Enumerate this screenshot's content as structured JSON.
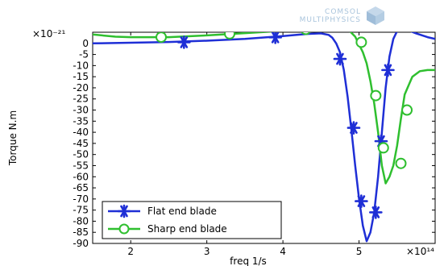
{
  "branding": {
    "logo_line1": "COMSOL",
    "logo_line2": "MULTIPHYSICS",
    "logo_color": "#a9c4dc"
  },
  "chart_data": {
    "type": "line",
    "xlabel": "freq 1/s",
    "ylabel": "Torque N.m",
    "x_exponent_label": "×10¹⁴",
    "y_exponent_label": "×10⁻²¹",
    "x_scale": 100000000000000.0,
    "y_scale": 1e-21,
    "xlim": [
      1.5,
      6.0
    ],
    "ylim": [
      -90,
      5
    ],
    "xticks": [
      2,
      3,
      4,
      5
    ],
    "yticks": [
      0,
      -5,
      -10,
      -15,
      -20,
      -25,
      -30,
      -35,
      -40,
      -45,
      -50,
      -55,
      -60,
      -65,
      -70,
      -75,
      -80,
      -85,
      -90
    ],
    "grid": false,
    "legend_position": "bottom-left",
    "series": [
      {
        "name": "Flat end blade",
        "color": "#1f2fd6",
        "marker": "star",
        "x": [
          1.5,
          2.0,
          2.5,
          3.0,
          3.5,
          4.0,
          4.3,
          4.5,
          4.6,
          4.65,
          4.7,
          4.75,
          4.8,
          4.85,
          4.9,
          4.95,
          5.0,
          5.05,
          5.1,
          5.15,
          5.2,
          5.25,
          5.3,
          5.35,
          5.4,
          5.45,
          5.5,
          5.6,
          5.75,
          5.9,
          6.0
        ],
        "y": [
          0,
          0.3,
          0.6,
          1.2,
          2.0,
          3.3,
          4.2,
          4.5,
          3.8,
          2.5,
          0,
          -4,
          -12,
          -24,
          -39,
          -55,
          -70,
          -82,
          -89,
          -85,
          -76,
          -60,
          -40,
          -20,
          -6,
          2,
          5.5,
          6.5,
          4.5,
          2.8,
          2.0
        ],
        "markers_x": [
          2.7,
          3.9,
          4.75,
          4.93,
          5.03,
          5.22,
          5.29,
          5.38
        ],
        "markers_y": [
          0.5,
          2.7,
          -7,
          -38,
          -71,
          -76,
          -44,
          -12
        ]
      },
      {
        "name": "Sharp end blade",
        "color": "#2fbf2f",
        "marker": "circle",
        "x": [
          1.5,
          1.8,
          2.0,
          2.5,
          3.0,
          3.5,
          4.0,
          4.3,
          4.6,
          4.75,
          4.85,
          4.95,
          5.05,
          5.1,
          5.15,
          5.2,
          5.25,
          5.3,
          5.35,
          5.4,
          5.45,
          5.5,
          5.55,
          5.6,
          5.7,
          5.8,
          5.9,
          6.0
        ],
        "y": [
          4.0,
          3.0,
          2.8,
          2.8,
          3.6,
          4.6,
          5.6,
          6.2,
          7.0,
          7.3,
          6.5,
          3.0,
          -4,
          -9,
          -17,
          -27,
          -40,
          -55,
          -63,
          -60,
          -55,
          -46,
          -34,
          -23,
          -15,
          -12.5,
          -12.0,
          -12.0
        ],
        "markers_x": [
          2.4,
          3.3,
          4.3,
          5.03,
          5.22,
          5.32,
          5.55,
          5.63
        ],
        "markers_y": [
          2.8,
          4.3,
          6.3,
          0.5,
          -23.5,
          -47,
          -54,
          -30
        ]
      }
    ]
  }
}
